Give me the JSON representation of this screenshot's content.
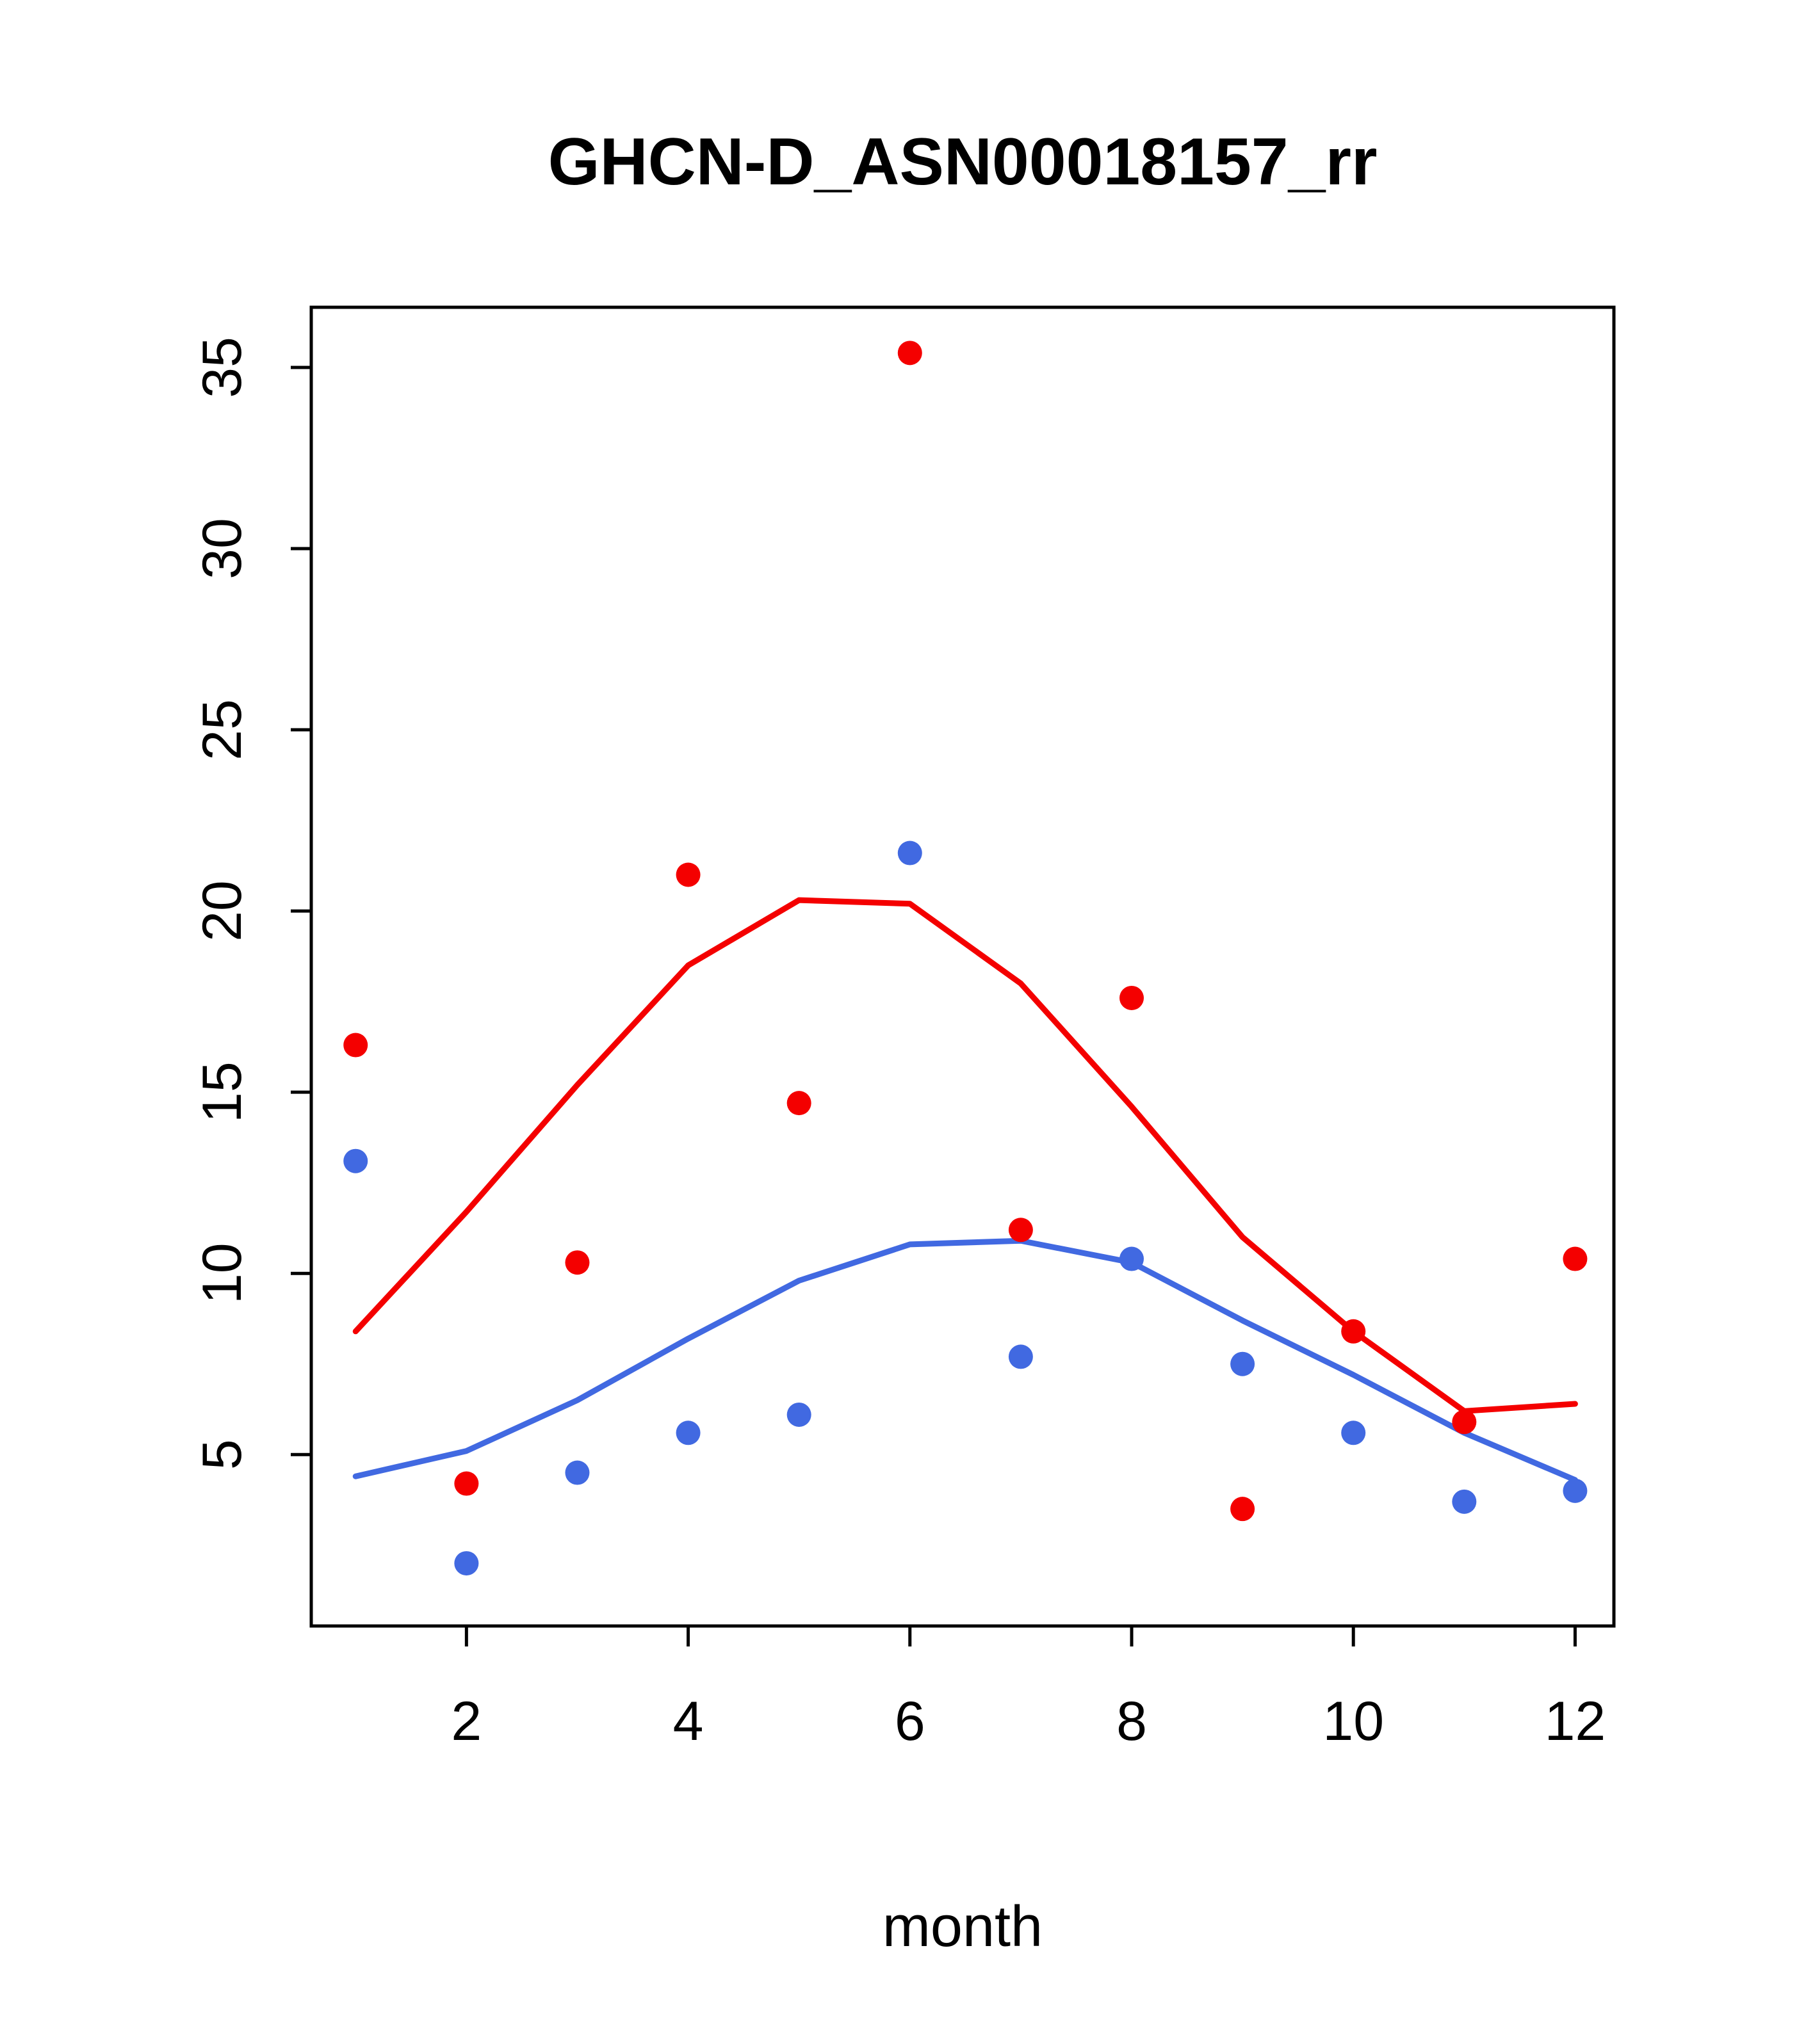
{
  "title": "GHCN-D_ASN00018157_rr",
  "chart_data": {
    "type": "scatter",
    "title": "GHCN-D_ASN00018157_rr",
    "xlabel": "month",
    "ylabel": "",
    "x": [
      1,
      2,
      3,
      4,
      5,
      6,
      7,
      8,
      9,
      10,
      11,
      12
    ],
    "xticks": [
      2,
      4,
      6,
      8,
      10,
      12
    ],
    "yticks": [
      5,
      10,
      15,
      20,
      25,
      30,
      35
    ],
    "xlim": [
      0.6,
      12.35
    ],
    "ylim": [
      0.27,
      36.66
    ],
    "grid": false,
    "legend": "none",
    "colors": {
      "red": "#f40000",
      "blue": "#4169e1"
    },
    "series": [
      {
        "name": "red-points",
        "kind": "points",
        "color": "#f40000",
        "values": [
          16.3,
          4.2,
          10.3,
          21.0,
          14.7,
          35.4,
          11.2,
          17.6,
          3.5,
          8.4,
          5.9,
          10.4
        ]
      },
      {
        "name": "blue-points",
        "kind": "points",
        "color": "#4169e1",
        "values": [
          13.1,
          2.0,
          4.5,
          5.6,
          6.1,
          21.6,
          7.7,
          10.4,
          7.5,
          5.6,
          3.7,
          4.0
        ]
      },
      {
        "name": "red-smooth-line",
        "kind": "line",
        "color": "#f40000",
        "values": [
          8.4,
          11.7,
          15.2,
          18.5,
          20.3,
          20.2,
          18.0,
          14.6,
          11.0,
          8.4,
          6.2,
          6.4
        ]
      },
      {
        "name": "blue-smooth-line",
        "kind": "line",
        "color": "#4169e1",
        "values": [
          4.4,
          5.1,
          6.5,
          8.2,
          9.8,
          10.8,
          10.9,
          10.3,
          8.7,
          7.2,
          5.6,
          4.3
        ]
      }
    ]
  }
}
